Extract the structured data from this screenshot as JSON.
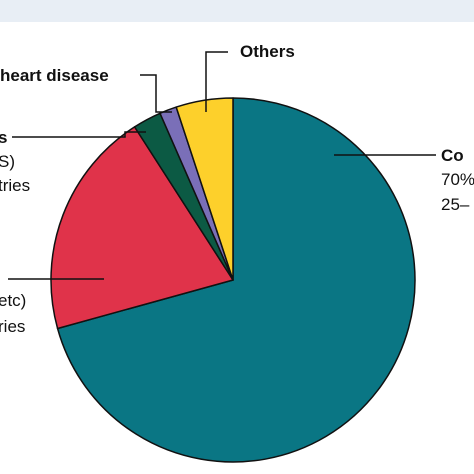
{
  "chart_data": {
    "type": "pie",
    "slices": [
      {
        "label": "Co",
        "value": 70,
        "color": "#0a7684"
      },
      {
        "label": "",
        "value": 20,
        "color": "#e0334a"
      },
      {
        "label": "",
        "value": 2.5,
        "color": "#0c5a44"
      },
      {
        "label": "heart disease",
        "value": 1.5,
        "color": "#7a6fb8"
      },
      {
        "label": "Others",
        "value": 5,
        "color": "#fdd02b"
      }
    ],
    "text_lines": {
      "co_line1": "Co",
      "co_line2": "70%",
      "co_line3": "25–",
      "green_line1": "s",
      "green_line2": "S)",
      "green_line3": "tries",
      "red_line1": "etc)",
      "red_line2": "ries",
      "heart": "heart disease",
      "others": "Others"
    }
  }
}
